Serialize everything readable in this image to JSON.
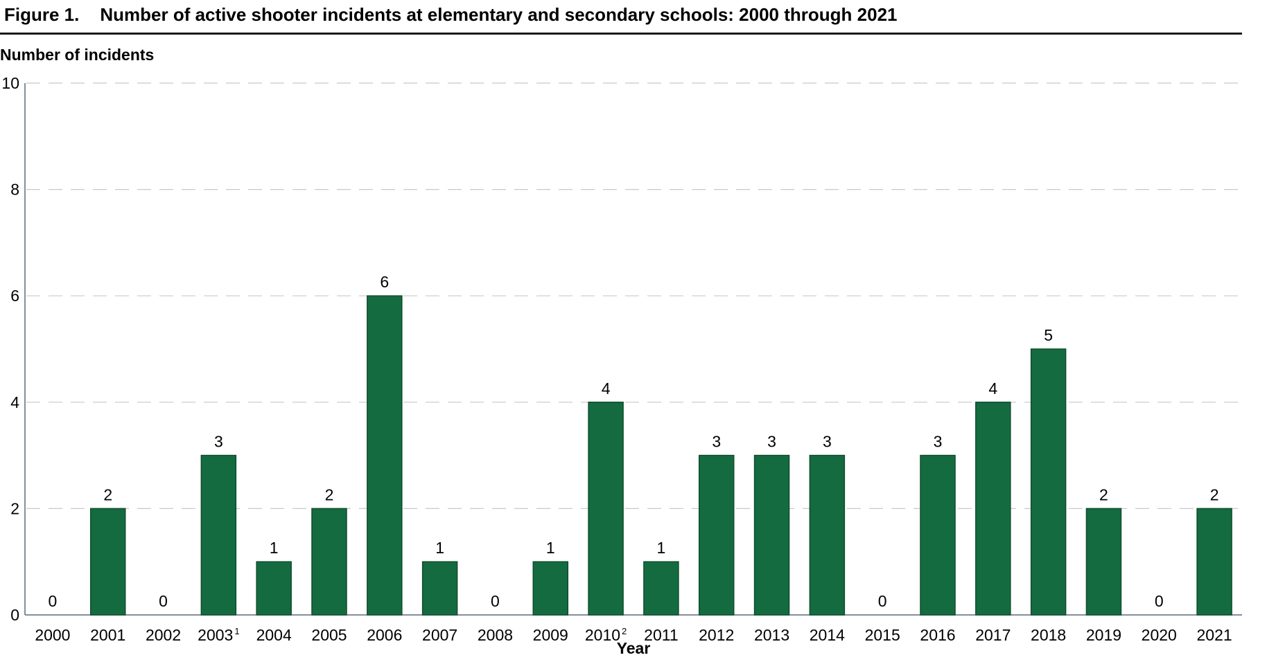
{
  "figure": {
    "number": "Figure 1.",
    "title": "Number of active shooter incidents at elementary and secondary schools: 2000 through 2021"
  },
  "chart_data": {
    "type": "bar",
    "ylabel": "Number of incidents",
    "xlabel": "Year",
    "ylim": [
      0,
      10
    ],
    "yticks": [
      "0",
      "2",
      "4",
      "6",
      "8",
      "10"
    ],
    "grid": "dashed horizontal",
    "bar_color": "#146b3f",
    "categories": [
      {
        "year": "2000",
        "sup": ""
      },
      {
        "year": "2001",
        "sup": ""
      },
      {
        "year": "2002",
        "sup": ""
      },
      {
        "year": "2003",
        "sup": "1"
      },
      {
        "year": "2004",
        "sup": ""
      },
      {
        "year": "2005",
        "sup": ""
      },
      {
        "year": "2006",
        "sup": ""
      },
      {
        "year": "2007",
        "sup": ""
      },
      {
        "year": "2008",
        "sup": ""
      },
      {
        "year": "2009",
        "sup": ""
      },
      {
        "year": "2010",
        "sup": "2"
      },
      {
        "year": "2011",
        "sup": ""
      },
      {
        "year": "2012",
        "sup": ""
      },
      {
        "year": "2013",
        "sup": ""
      },
      {
        "year": "2014",
        "sup": ""
      },
      {
        "year": "2015",
        "sup": ""
      },
      {
        "year": "2016",
        "sup": ""
      },
      {
        "year": "2017",
        "sup": ""
      },
      {
        "year": "2018",
        "sup": ""
      },
      {
        "year": "2019",
        "sup": ""
      },
      {
        "year": "2020",
        "sup": ""
      },
      {
        "year": "2021",
        "sup": ""
      }
    ],
    "values": [
      0,
      2,
      0,
      3,
      1,
      2,
      6,
      1,
      0,
      1,
      4,
      1,
      3,
      3,
      3,
      0,
      3,
      4,
      5,
      2,
      0,
      2
    ]
  }
}
